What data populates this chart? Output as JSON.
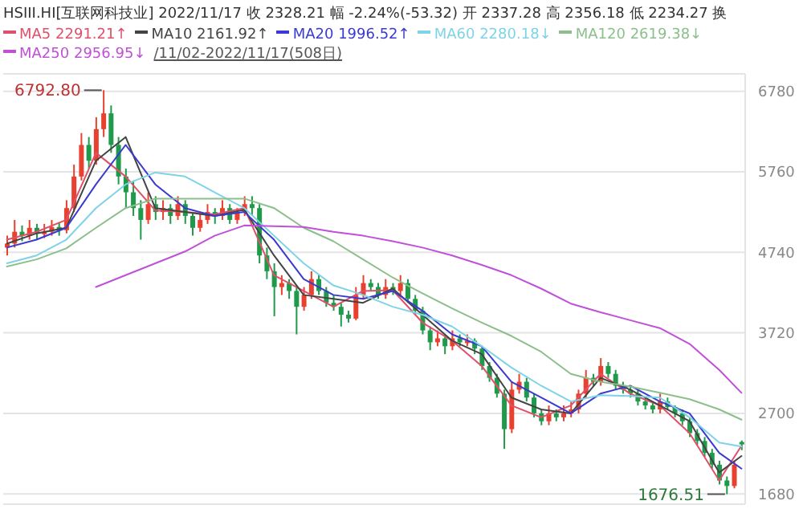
{
  "chart_data": {
    "type": "candlestick",
    "title": "HSIII.HI[互联网科技业]  2022/11/17  收 2328.21  幅 -2.24%(-53.32)  开 2337.28  高 2356.18  低 2234.27  换",
    "categories": [
      null,
      null,
      null,
      null,
      null,
      null,
      null,
      null,
      null,
      null,
      null,
      null,
      null,
      null,
      null,
      null,
      null,
      null,
      null,
      null,
      null,
      null,
      null,
      null,
      null,
      null,
      null,
      null,
      null,
      null,
      null,
      null,
      null,
      null,
      null,
      null,
      null,
      null,
      null,
      null,
      null,
      null,
      null,
      null,
      null,
      null,
      null,
      null,
      null,
      null,
      null,
      null,
      null,
      null,
      null,
      null,
      null,
      null,
      null,
      null,
      null,
      null,
      null,
      null,
      null,
      null,
      null,
      null,
      null,
      null,
      null,
      null,
      null,
      null,
      null,
      null,
      null,
      null,
      null,
      null,
      null,
      null,
      null,
      null,
      null,
      null,
      null,
      null,
      null,
      null,
      null,
      null,
      null,
      null,
      null,
      null,
      null,
      null,
      null,
      null
    ],
    "ohlc": [
      [
        4800,
        4950,
        4700,
        4850
      ],
      [
        4850,
        5150,
        4800,
        5000
      ],
      [
        5000,
        5080,
        4880,
        4950
      ],
      [
        4950,
        5150,
        4900,
        5050
      ],
      [
        5050,
        5100,
        4900,
        4980
      ],
      [
        4980,
        5100,
        4920,
        5000
      ],
      [
        5000,
        5150,
        4950,
        5060
      ],
      [
        5060,
        5120,
        4950,
        5020
      ],
      [
        5020,
        5400,
        4980,
        5300
      ],
      [
        5300,
        5850,
        5250,
        5700
      ],
      [
        5700,
        6250,
        5650,
        6100
      ],
      [
        6100,
        6200,
        5800,
        5900
      ],
      [
        5900,
        6450,
        5850,
        6300
      ],
      [
        6300,
        6792.8,
        6200,
        6500
      ],
      [
        6500,
        6600,
        6000,
        6100
      ],
      [
        6100,
        6200,
        5600,
        5700
      ],
      [
        5700,
        5800,
        5300,
        5500
      ],
      [
        5500,
        5650,
        5200,
        5300
      ],
      [
        5300,
        5400,
        4900,
        5150
      ],
      [
        5150,
        5500,
        5100,
        5350
      ],
      [
        5350,
        5450,
        5150,
        5250
      ],
      [
        5250,
        5400,
        5150,
        5300
      ],
      [
        5300,
        5350,
        5100,
        5200
      ],
      [
        5200,
        5450,
        5150,
        5350
      ],
      [
        5350,
        5400,
        5100,
        5200
      ],
      [
        5200,
        5250,
        4950,
        5050
      ],
      [
        5050,
        5250,
        5000,
        5150
      ],
      [
        5150,
        5350,
        5100,
        5250
      ],
      [
        5250,
        5300,
        5100,
        5200
      ],
      [
        5200,
        5400,
        5150,
        5300
      ],
      [
        5300,
        5350,
        5100,
        5150
      ],
      [
        5150,
        5300,
        5100,
        5250
      ],
      [
        5250,
        5450,
        5200,
        5350
      ],
      [
        5350,
        5450,
        5200,
        5300
      ],
      [
        5300,
        5350,
        4600,
        4700
      ],
      [
        4700,
        4800,
        4400,
        4500
      ],
      [
        4500,
        4600,
        3930,
        4300
      ],
      [
        4300,
        4450,
        4200,
        4350
      ],
      [
        4350,
        4400,
        4150,
        4250
      ],
      [
        4250,
        4300,
        3700,
        4050
      ],
      [
        4050,
        4300,
        4000,
        4200
      ],
      [
        4200,
        4500,
        4150,
        4400
      ],
      [
        4400,
        4450,
        4200,
        4250
      ],
      [
        4250,
        4300,
        4050,
        4100
      ],
      [
        4100,
        4200,
        4000,
        4050
      ],
      [
        4050,
        4100,
        3800,
        3950
      ],
      [
        3950,
        4000,
        3850,
        3900
      ],
      [
        3900,
        4300,
        3880,
        4200
      ],
      [
        4200,
        4450,
        4150,
        4350
      ],
      [
        4350,
        4400,
        4250,
        4300
      ],
      [
        4300,
        4350,
        4150,
        4200
      ],
      [
        4200,
        4400,
        4150,
        4300
      ],
      [
        4300,
        4350,
        4200,
        4250
      ],
      [
        4250,
        4450,
        4200,
        4350
      ],
      [
        4350,
        4400,
        4100,
        4150
      ],
      [
        4150,
        4200,
        3950,
        4000
      ],
      [
        4000,
        4050,
        3700,
        3750
      ],
      [
        3750,
        3800,
        3500,
        3600
      ],
      [
        3600,
        3750,
        3550,
        3650
      ],
      [
        3650,
        3700,
        3450,
        3550
      ],
      [
        3550,
        3750,
        3500,
        3650
      ],
      [
        3650,
        3700,
        3550,
        3600
      ],
      [
        3600,
        3700,
        3550,
        3620
      ],
      [
        3620,
        3650,
        3450,
        3520
      ],
      [
        3520,
        3550,
        3250,
        3300
      ],
      [
        3300,
        3350,
        3100,
        3150
      ],
      [
        3150,
        3200,
        2900,
        2950
      ],
      [
        2950,
        3000,
        2250,
        2500
      ],
      [
        2500,
        3100,
        2450,
        3000
      ],
      [
        3000,
        3200,
        2950,
        3100
      ],
      [
        3100,
        3150,
        2850,
        2900
      ],
      [
        2900,
        2950,
        2650,
        2700
      ],
      [
        2700,
        2750,
        2550,
        2600
      ],
      [
        2600,
        2800,
        2550,
        2700
      ],
      [
        2700,
        2750,
        2600,
        2650
      ],
      [
        2650,
        2800,
        2600,
        2700
      ],
      [
        2700,
        2850,
        2650,
        2750
      ],
      [
        2750,
        3000,
        2700,
        2950
      ],
      [
        2950,
        3250,
        2900,
        3150
      ],
      [
        3150,
        3200,
        3050,
        3100
      ],
      [
        3100,
        3400,
        3050,
        3300
      ],
      [
        3300,
        3350,
        3150,
        3200
      ],
      [
        3200,
        3250,
        3000,
        3050
      ],
      [
        3050,
        3100,
        2950,
        3000
      ],
      [
        3000,
        3050,
        2900,
        2950
      ],
      [
        2950,
        3000,
        2800,
        2850
      ],
      [
        2850,
        2900,
        2750,
        2800
      ],
      [
        2800,
        2850,
        2700,
        2750
      ],
      [
        2750,
        2950,
        2700,
        2850
      ],
      [
        2850,
        2900,
        2750,
        2780
      ],
      [
        2780,
        2800,
        2650,
        2700
      ],
      [
        2700,
        2750,
        2550,
        2600
      ],
      [
        2600,
        2650,
        2400,
        2450
      ],
      [
        2450,
        2500,
        2300,
        2350
      ],
      [
        2350,
        2400,
        2150,
        2200
      ],
      [
        2200,
        2250,
        2000,
        2050
      ],
      [
        2050,
        2100,
        1800,
        1850
      ],
      [
        1850,
        1900,
        1676.51,
        1780
      ],
      [
        1780,
        2100,
        1750,
        2050
      ],
      [
        2337.28,
        2356.18,
        2234.27,
        2328.21
      ]
    ],
    "series": [
      {
        "type": "line",
        "name": "MA5",
        "color": "#e0506a",
        "values": [
          4900,
          null,
          null,
          null,
          5000,
          null,
          null,
          null,
          5150,
          null,
          null,
          null,
          6000,
          null,
          null,
          null,
          5700,
          null,
          null,
          null,
          5270,
          null,
          null,
          null,
          5250,
          null,
          null,
          null,
          5220,
          null,
          null,
          null,
          5300,
          null,
          null,
          null,
          4450,
          null,
          null,
          null,
          4250,
          null,
          null,
          null,
          4050,
          null,
          null,
          null,
          4250,
          null,
          null,
          null,
          4260,
          null,
          null,
          null,
          3850,
          null,
          null,
          null,
          3620,
          null,
          null,
          null,
          3300,
          null,
          null,
          null,
          2800,
          null,
          null,
          null,
          2650,
          null,
          null,
          null,
          2800,
          null,
          null,
          null,
          3200,
          null,
          null,
          null,
          2950,
          null,
          null,
          null,
          2800,
          null,
          null,
          null,
          2450,
          null,
          null,
          null,
          1850,
          null,
          null,
          2290
        ]
      },
      {
        "type": "line",
        "name": "MA10",
        "color": "#444444",
        "values": [
          4850,
          null,
          null,
          null,
          4980,
          null,
          null,
          null,
          5050,
          null,
          null,
          null,
          5900,
          null,
          null,
          null,
          6200,
          null,
          null,
          null,
          5300,
          null,
          null,
          null,
          5250,
          null,
          null,
          null,
          5200,
          null,
          null,
          null,
          5280,
          null,
          null,
          null,
          4700,
          null,
          null,
          null,
          4200,
          null,
          null,
          null,
          4150,
          null,
          null,
          null,
          4100,
          null,
          null,
          null,
          4280,
          null,
          null,
          null,
          3950,
          null,
          null,
          null,
          3620,
          null,
          null,
          null,
          3450,
          null,
          null,
          null,
          2900,
          null,
          null,
          null,
          2750,
          null,
          null,
          null,
          2700,
          null,
          null,
          null,
          3150,
          null,
          null,
          null,
          3000,
          null,
          null,
          null,
          2800,
          null,
          null,
          null,
          2600,
          null,
          null,
          null,
          1950,
          null,
          null,
          2160
        ]
      },
      {
        "type": "line",
        "name": "MA20",
        "color": "#3a3ad0",
        "values": [
          4800,
          null,
          null,
          null,
          4900,
          null,
          null,
          null,
          5050,
          null,
          null,
          null,
          5600,
          null,
          null,
          null,
          6100,
          null,
          null,
          null,
          5600,
          null,
          null,
          null,
          5300,
          null,
          null,
          null,
          5200,
          null,
          null,
          null,
          5250,
          null,
          null,
          null,
          4900,
          null,
          null,
          null,
          4400,
          null,
          null,
          null,
          4200,
          null,
          null,
          null,
          4150,
          null,
          null,
          null,
          4250,
          null,
          null,
          null,
          4000,
          null,
          null,
          null,
          3700,
          null,
          null,
          null,
          3550,
          null,
          null,
          null,
          3100,
          null,
          null,
          null,
          2900,
          null,
          null,
          null,
          2700,
          null,
          null,
          null,
          2950,
          null,
          null,
          null,
          3050,
          null,
          null,
          null,
          2850,
          null,
          null,
          null,
          2700,
          null,
          null,
          null,
          2200,
          null,
          null,
          2000
        ]
      },
      {
        "type": "line",
        "name": "MA60",
        "color": "#7fd3e6",
        "values": [
          4600,
          null,
          null,
          null,
          4700,
          null,
          null,
          null,
          4900,
          null,
          null,
          null,
          5300,
          null,
          null,
          null,
          5600,
          null,
          null,
          null,
          5750,
          null,
          null,
          null,
          5700,
          null,
          null,
          null,
          5500,
          null,
          null,
          null,
          5300,
          null,
          null,
          null,
          4950,
          null,
          null,
          null,
          4600,
          null,
          null,
          null,
          4320,
          null,
          null,
          null,
          4200,
          null,
          null,
          null,
          4050,
          null,
          null,
          null,
          3950,
          null,
          null,
          null,
          3800,
          null,
          null,
          null,
          3550,
          null,
          null,
          null,
          3280,
          null,
          null,
          null,
          3050,
          null,
          null,
          null,
          2850,
          null,
          null,
          null,
          2930,
          null,
          null,
          null,
          2920,
          null,
          null,
          null,
          2900,
          null,
          null,
          null,
          2650,
          null,
          null,
          null,
          2330,
          null,
          null,
          2280
        ]
      },
      {
        "type": "line",
        "name": "MA120",
        "color": "#8cbf8c",
        "values": [
          4560,
          null,
          null,
          null,
          4650,
          null,
          null,
          null,
          4790,
          null,
          null,
          null,
          5050,
          null,
          null,
          null,
          5300,
          null,
          null,
          null,
          5420,
          null,
          null,
          null,
          5420,
          null,
          null,
          null,
          5420,
          null,
          null,
          null,
          5420,
          null,
          null,
          null,
          5300,
          null,
          null,
          null,
          5050,
          null,
          null,
          null,
          4880,
          null,
          null,
          null,
          4650,
          null,
          null,
          null,
          4420,
          null,
          null,
          null,
          4220,
          null,
          null,
          null,
          4030,
          null,
          null,
          null,
          3850,
          null,
          null,
          null,
          3680,
          null,
          null,
          null,
          3480,
          null,
          null,
          null,
          3200,
          null,
          null,
          null,
          3100,
          null,
          null,
          null,
          3040,
          null,
          null,
          null,
          2960,
          null,
          null,
          null,
          2880,
          null,
          null,
          null,
          2750,
          null,
          null,
          2620
        ]
      },
      {
        "type": "line",
        "name": "MA250",
        "color": "#c050d8",
        "values": [
          null,
          null,
          null,
          null,
          null,
          null,
          null,
          null,
          null,
          null,
          null,
          null,
          4300,
          null,
          null,
          null,
          4450,
          null,
          null,
          null,
          4600,
          null,
          null,
          null,
          4750,
          null,
          null,
          null,
          4950,
          null,
          null,
          null,
          5080,
          null,
          null,
          null,
          5070,
          null,
          null,
          null,
          5060,
          null,
          null,
          null,
          5000,
          null,
          null,
          null,
          4950,
          null,
          null,
          null,
          4880,
          null,
          null,
          null,
          4800,
          null,
          null,
          null,
          4700,
          null,
          null,
          null,
          4580,
          null,
          null,
          null,
          4450,
          null,
          null,
          null,
          4280,
          null,
          null,
          null,
          4090,
          null,
          null,
          null,
          3980,
          null,
          null,
          null,
          3880,
          null,
          null,
          null,
          3780,
          null,
          null,
          null,
          3580,
          null,
          null,
          null,
          3250,
          null,
          null,
          2960
        ]
      }
    ],
    "annotations": [
      "2291.21↑",
      "2161.92↑",
      "1996.52↑",
      "2280.18↓",
      "2619.38↓",
      "2956.95↓",
      "/11/02-2022/11/17(508日)",
      "6792.80",
      "1676.51"
    ],
    "ylim": [
      1550,
      7000
    ],
    "yticks": [
      1680,
      2700,
      3720,
      4740,
      5760,
      6780
    ],
    "grid": "y",
    "legend": "top left",
    "tick_labels": "y"
  }
}
